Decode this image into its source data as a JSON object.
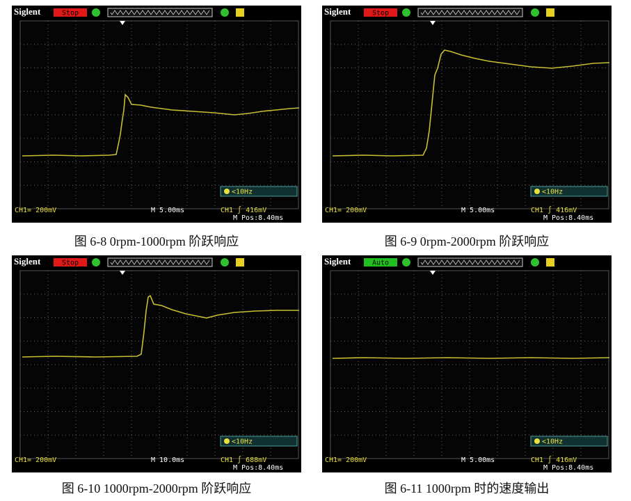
{
  "panels": [
    {
      "brand": "Siglent",
      "status": "Stop",
      "status_color": "#e01818",
      "ch_scale": "CH1= 200mV",
      "timebase": "M 5.00ms",
      "trigger": "CH1 ∫ 416mV",
      "mpos": "M Pos:8.40ms",
      "filter": "<10Hz",
      "caption": "图  6-8 0rpm-1000rpm 阶跃响应"
    },
    {
      "brand": "Siglent",
      "status": "Stop",
      "status_color": "#e01818",
      "ch_scale": "CH1= 200mV",
      "timebase": "M 5.00ms",
      "trigger": "CH1 ∫ 416mV",
      "mpos": "M Pos:8.40ms",
      "filter": "<10Hz",
      "caption": "图  6-9 0rpm-2000rpm 阶跃响应"
    },
    {
      "brand": "Siglent",
      "status": "Stop",
      "status_color": "#e01818",
      "ch_scale": "CH1= 200mV",
      "timebase": "M 10.0ms",
      "trigger": "CH1 ∫ 688mV",
      "mpos": "M Pos:8.40ms",
      "filter": "<10Hz",
      "caption": "图  6-10 1000rpm-2000rpm 阶跃响应"
    },
    {
      "brand": "Siglent",
      "status": "Auto",
      "status_color": "#20c020",
      "ch_scale": "CH1= 200mV",
      "timebase": "M 5.00ms",
      "trigger": "CH1 ∫ 416mV",
      "mpos": "M Pos:8.40ms",
      "filter": "<10Hz",
      "caption": "图  6-11 1000rpm 时的速度输出"
    }
  ]
}
